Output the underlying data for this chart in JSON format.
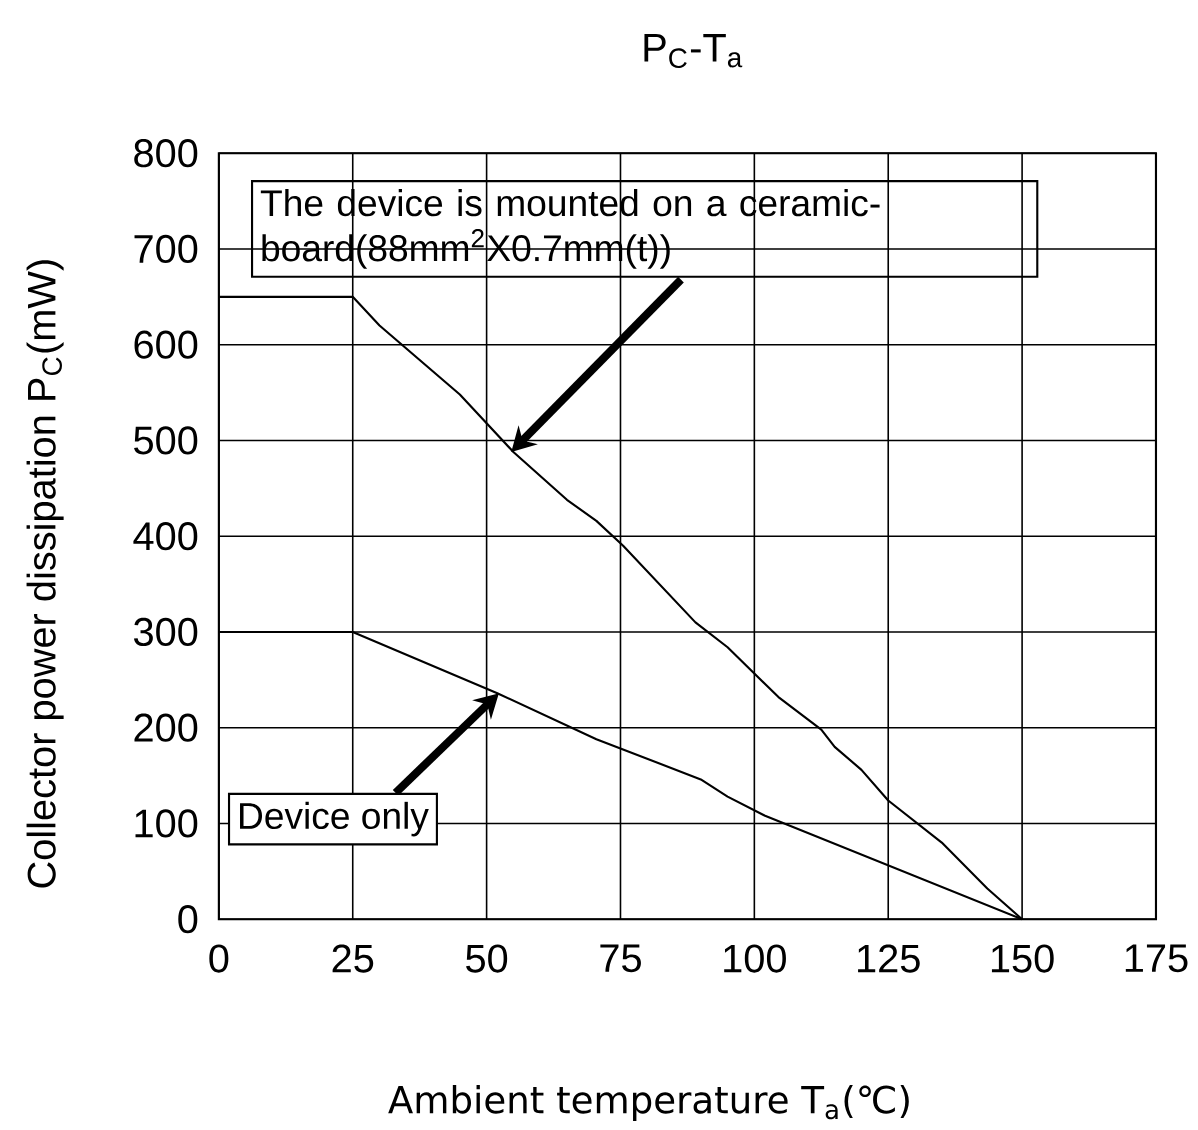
{
  "chart_data": {
    "type": "line",
    "title": "P$_{C}$-T$_{a}$",
    "xlabel": "Ambient temperature T$_{a}$(℃)",
    "ylabel": "Collector power dissipation P$_{C}$(mW)",
    "xlim": [
      0,
      175
    ],
    "ylim": [
      0,
      800
    ],
    "xticks": [
      0,
      25,
      50,
      75,
      100,
      125,
      150,
      175
    ],
    "yticks": [
      0,
      100,
      200,
      300,
      400,
      500,
      600,
      700,
      800
    ],
    "grid": true,
    "series": [
      {
        "color": "#000000",
        "x": [
          0,
          25,
          30,
          45,
          55,
          65,
          70.5,
          75.5,
          89,
          95,
          104.5,
          112.5,
          115,
          120,
          125,
          135,
          143.5,
          150
        ],
        "values": [
          650,
          650,
          620,
          548,
          488,
          438,
          416,
          390,
          310,
          284,
          232,
          198,
          180,
          156,
          124,
          80,
          32,
          0
        ]
      },
      {
        "color": "#000000",
        "x": [
          0,
          25,
          52,
          70.5,
          90,
          95,
          102,
          150
        ],
        "values": [
          300,
          300,
          236,
          188,
          146,
          128,
          108,
          0
        ]
      }
    ],
    "annotations": [
      {
        "text": "The device is mounted on a ceramic-board(88mm$^{2}$X0.7mm(t))",
        "x": 54.6,
        "y": 488
      },
      {
        "text": "Device only",
        "x": 52.3,
        "y": 236
      }
    ]
  }
}
